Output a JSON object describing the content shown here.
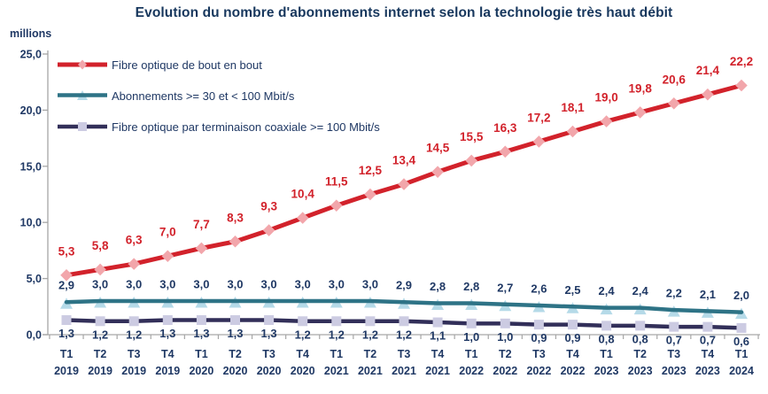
{
  "chart_data": {
    "type": "line",
    "title": "Evolution du nombre d'abonnements internet selon la technologie très haut débit",
    "unit_label": "millions",
    "ylim": [
      0,
      25
    ],
    "ytick_labels": [
      "0,0",
      "5,0",
      "10,0",
      "15,0",
      "20,0",
      "25,0"
    ],
    "x_quarters": [
      "T1",
      "T2",
      "T3",
      "T4",
      "T1",
      "T2",
      "T3",
      "T4",
      "T1",
      "T2",
      "T3",
      "T4",
      "T1",
      "T2",
      "T3",
      "T4",
      "T1",
      "T2",
      "T3",
      "T4",
      "T1"
    ],
    "x_years": [
      "2019",
      "2019",
      "2019",
      "2019",
      "2020",
      "2020",
      "2020",
      "2020",
      "2021",
      "2021",
      "2021",
      "2021",
      "2022",
      "2022",
      "2022",
      "2022",
      "2023",
      "2023",
      "2023",
      "2023",
      "2024"
    ],
    "series": [
      {
        "name": "Fibre optique de bout en bout",
        "color": "#D2222B",
        "marker": "diamond",
        "marker_fill": "#F2A6AB",
        "label_color": "#D2222B",
        "label_dy": -27,
        "marker_under_line": false,
        "values": [
          5.3,
          5.8,
          6.3,
          7.0,
          7.7,
          8.3,
          9.3,
          10.4,
          11.5,
          12.5,
          13.4,
          14.5,
          15.5,
          16.3,
          17.2,
          18.1,
          19.0,
          19.8,
          20.6,
          21.4,
          22.2
        ]
      },
      {
        "name": "Abonnements >= 30 et < 100 Mbit/s",
        "color": "#2E7386",
        "marker": "triangle",
        "marker_fill": "#B5DAE8",
        "label_color": "#1F3864",
        "label_dy": -19,
        "marker_under_line": true,
        "values": [
          2.9,
          3.0,
          3.0,
          3.0,
          3.0,
          3.0,
          3.0,
          3.0,
          3.0,
          3.0,
          2.9,
          2.8,
          2.8,
          2.7,
          2.6,
          2.5,
          2.4,
          2.4,
          2.2,
          2.1,
          2.0
        ]
      },
      {
        "name": "Fibre optique par terminaison coaxiale >= 100 Mbit/s",
        "color": "#322F59",
        "marker": "square",
        "marker_fill": "#CCCBE2",
        "label_color": "#1F3864",
        "label_dy": 15,
        "marker_under_line": false,
        "values": [
          1.3,
          1.2,
          1.2,
          1.3,
          1.3,
          1.3,
          1.3,
          1.2,
          1.2,
          1.2,
          1.2,
          1.1,
          1.0,
          1.0,
          0.9,
          0.9,
          0.8,
          0.8,
          0.7,
          0.7,
          0.6
        ]
      }
    ],
    "legend_position": "top-left",
    "grid": false,
    "text_color": "#1F3864",
    "axis_color": "#A6A6A6"
  }
}
